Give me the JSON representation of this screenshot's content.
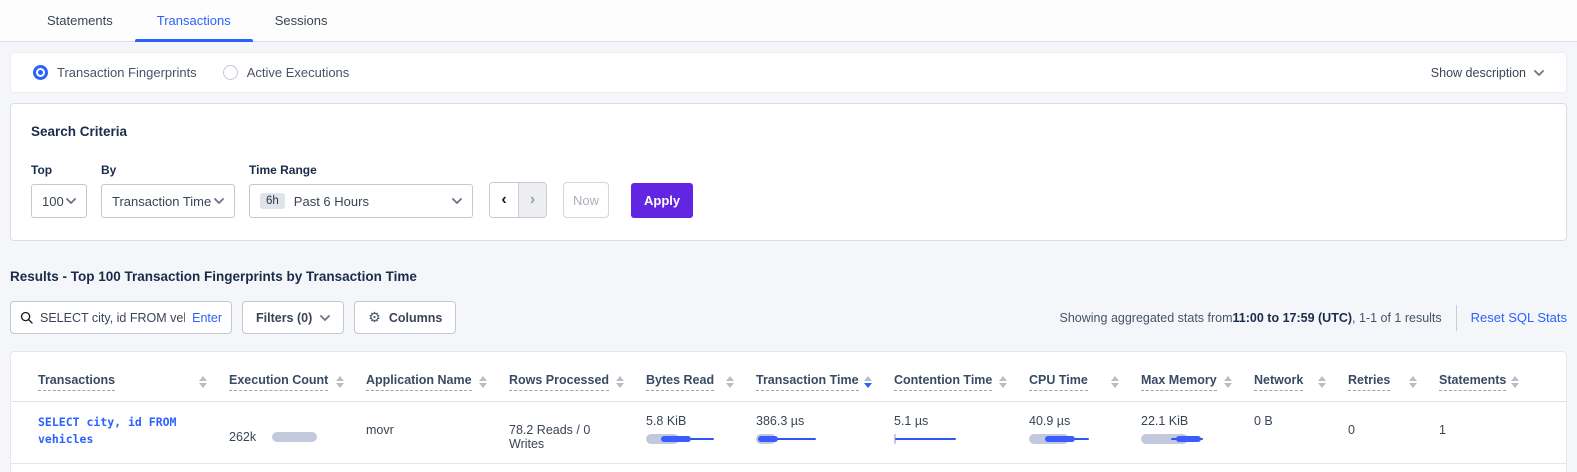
{
  "tabs": [
    {
      "label": "Statements",
      "active": false
    },
    {
      "label": "Transactions",
      "active": true
    },
    {
      "label": "Sessions",
      "active": false
    }
  ],
  "view_toggle": {
    "options": [
      {
        "label": "Transaction Fingerprints",
        "selected": true
      },
      {
        "label": "Active Executions",
        "selected": false
      }
    ],
    "show_description_label": "Show description"
  },
  "search_criteria": {
    "title": "Search Criteria",
    "top": {
      "label": "Top",
      "value": "100"
    },
    "by": {
      "label": "By",
      "value": "Transaction Time"
    },
    "time_range": {
      "label": "Time Range",
      "badge": "6h",
      "value": "Past 6 Hours"
    },
    "prev_label": "‹",
    "next_label": "›",
    "now_label": "Now",
    "apply_label": "Apply"
  },
  "results": {
    "title": "Results - Top 100 Transaction Fingerprints by Transaction Time",
    "search": {
      "value": "SELECT city, id FROM vehicles W",
      "enter_label": "Enter"
    },
    "filters_label": "Filters (0)",
    "columns_label": "Columns",
    "gear_icon": "⚙",
    "stats_prefix": "Showing aggregated stats from ",
    "stats_range": "11:00 to 17:59 (UTC)",
    "stats_suffix": ", 1-1 of 1 results",
    "reset_link": "Reset SQL Stats"
  },
  "table": {
    "columns": [
      {
        "label": "Transactions",
        "sorted": false
      },
      {
        "label": "Execution Count",
        "sorted": false
      },
      {
        "label": "Application Name",
        "sorted": false
      },
      {
        "label": "Rows Processed",
        "sorted": false
      },
      {
        "label": "Bytes Read",
        "sorted": false
      },
      {
        "label": "Transaction Time",
        "sorted": true
      },
      {
        "label": "Contention Time",
        "sorted": false
      },
      {
        "label": "CPU Time",
        "sorted": false
      },
      {
        "label": "Max Memory",
        "sorted": false
      },
      {
        "label": "Network",
        "sorted": false
      },
      {
        "label": "Retries",
        "sorted": false
      },
      {
        "label": "Statements",
        "sorted": false
      }
    ],
    "row": {
      "transaction": "SELECT city, id FROM vehicles",
      "execution_count": "262k",
      "application_name": "movr",
      "rows_processed": "78.2 Reads / 0 Writes",
      "bytes_read": "5.8 KiB",
      "transaction_time": "386.3 µs",
      "contention_time": "5.1 µs",
      "cpu_time": "40.9 µs",
      "max_memory": "22.1 KiB",
      "network": "0 B",
      "retries": "0",
      "statements": "1"
    },
    "bars": {
      "execution_count": {
        "bar": 45
      },
      "bytes_read": {
        "bar": 33,
        "thick": [
          15,
          45
        ],
        "line": [
          15,
          68
        ]
      },
      "transaction_time": {
        "bar": 20,
        "thick": [
          2,
          22
        ],
        "line": [
          2,
          60
        ]
      },
      "contention_time": {
        "bar": 2,
        "line": [
          1,
          62
        ]
      },
      "cpu_time": {
        "bar": 40,
        "thick": [
          16,
          46
        ],
        "line": [
          16,
          60
        ]
      },
      "max_memory": {
        "bar": 47,
        "thick": [
          35,
          60
        ],
        "line": [
          30,
          62
        ]
      }
    }
  },
  "colors": {
    "accent_blue": "#2a62ff",
    "apply_purple": "#6226e3",
    "bar_grey": "#c3c9dd",
    "bar_blue": "#3b5cff",
    "page_background": "#f4f6fa"
  }
}
